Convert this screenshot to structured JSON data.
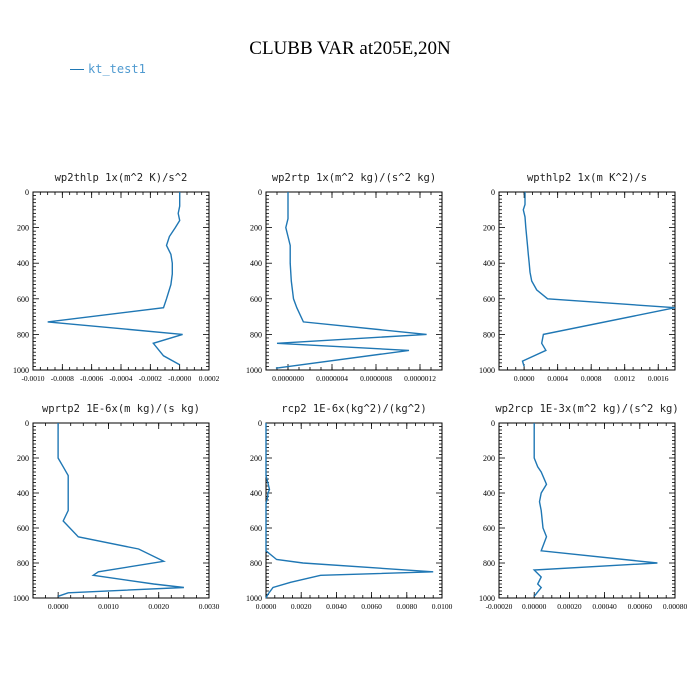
{
  "title": "CLUBB VAR at205E,20N",
  "legend": {
    "series_name": "kt_test1",
    "color": "#1f77b4"
  },
  "chart_data": [
    {
      "type": "line",
      "title": "wp2thlp  1x(m^2 K)/s^2",
      "xlim": [
        -0.001,
        0.0002
      ],
      "ylim": [
        1000,
        0
      ],
      "x_ticks": [
        "-0.0010",
        "-0.0008",
        "-0.0006",
        "-0.0004",
        "-0.0002",
        "-0.0000",
        "0.0002"
      ],
      "x_tick_values": [
        -0.001,
        -0.0008,
        -0.0006,
        -0.0004,
        -0.0002,
        0.0,
        0.0002
      ],
      "y_ticks": [
        "0",
        "200",
        "400",
        "600",
        "800",
        "1000"
      ],
      "series": [
        {
          "name": "kt_test1",
          "x": [
            0.0,
            0.0,
            -1e-05,
            0.0,
            -3e-05,
            -7e-05,
            -9e-05,
            -6e-05,
            -5e-05,
            -5e-05,
            -6e-05,
            -9e-05,
            -0.00011,
            -0.0009,
            2e-05,
            -0.00018,
            -0.00011,
            0.0
          ],
          "y": [
            0,
            80,
            120,
            160,
            200,
            250,
            300,
            350,
            400,
            460,
            520,
            600,
            650,
            730,
            800,
            850,
            920,
            970
          ]
        }
      ]
    },
    {
      "type": "line",
      "title": "wp2rtp  1x(m^2 kg)/(s^2 kg)",
      "xlim": [
        -2e-07,
        1.4e-06
      ],
      "ylim": [
        1000,
        0
      ],
      "x_ticks": [
        "0.0000000",
        "0.0000004",
        "0.0000008",
        "0.0000012"
      ],
      "x_tick_values": [
        0.0,
        4e-07,
        8e-07,
        1.2e-06
      ],
      "y_ticks": [
        "0",
        "200",
        "400",
        "600",
        "800",
        "1000"
      ],
      "series": [
        {
          "name": "kt_test1",
          "x": [
            0.0,
            0.0,
            0.0,
            -2e-08,
            0.0,
            2e-08,
            2e-08,
            3e-08,
            5e-08,
            8e-08,
            1.4e-07,
            1.26e-06,
            -1e-07,
            1.1e-06,
            -1.1e-07
          ],
          "y": [
            0,
            100,
            150,
            200,
            250,
            300,
            400,
            500,
            600,
            650,
            730,
            800,
            850,
            890,
            990
          ]
        }
      ]
    },
    {
      "type": "line",
      "title": "wpthlp2  1x(m K^2)/s",
      "xlim": [
        -0.0003,
        0.0018
      ],
      "ylim": [
        1000,
        0
      ],
      "x_ticks": [
        "0.0000",
        "0.0004",
        "0.0008",
        "0.0012",
        "0.0016"
      ],
      "x_tick_values": [
        0.0,
        0.0004,
        0.0008,
        0.0012,
        0.0016
      ],
      "y_ticks": [
        "0",
        "200",
        "400",
        "600",
        "800",
        "1000"
      ],
      "series": [
        {
          "name": "kt_test1",
          "x": [
            1e-05,
            1e-05,
            -1e-05,
            1e-05,
            2e-05,
            4e-05,
            5e-05,
            6e-05,
            7e-05,
            9e-05,
            0.00015,
            0.00028,
            0.0018,
            0.00023,
            0.00021,
            0.00026,
            -2e-05,
            0.0
          ],
          "y": [
            0,
            70,
            100,
            140,
            200,
            300,
            350,
            400,
            450,
            500,
            550,
            600,
            650,
            800,
            850,
            890,
            950,
            980
          ]
        }
      ]
    },
    {
      "type": "line",
      "title": "wprtp2  1E-6x(m kg)/(s kg)",
      "xlim": [
        -0.0005,
        0.003
      ],
      "ylim": [
        1000,
        0
      ],
      "x_ticks": [
        "0.0000",
        "0.0010",
        "0.0020",
        "0.0030"
      ],
      "x_tick_values": [
        0.0,
        0.001,
        0.002,
        0.003
      ],
      "y_ticks": [
        "0",
        "200",
        "400",
        "600",
        "800",
        "1000"
      ],
      "series": [
        {
          "name": "kt_test1",
          "x": [
            0.0,
            0.0,
            0.0,
            0.0001,
            0.0002,
            0.0002,
            0.0002,
            0.0001,
            0.0004,
            0.0016,
            0.0021,
            0.0008,
            0.0007,
            0.0019,
            0.0025,
            0.0002,
            0.0
          ],
          "y": [
            0,
            100,
            200,
            250,
            300,
            400,
            500,
            560,
            650,
            720,
            790,
            850,
            870,
            920,
            940,
            970,
            990
          ]
        }
      ]
    },
    {
      "type": "line",
      "title": "rcp2  1E-6x(kg^2)/(kg^2)",
      "xlim": [
        0.0,
        0.01
      ],
      "ylim": [
        1000,
        0
      ],
      "x_ticks": [
        "0.0000",
        "0.0020",
        "0.0040",
        "0.0060",
        "0.0080",
        "0.0100"
      ],
      "x_tick_values": [
        0.0,
        0.002,
        0.004,
        0.006,
        0.008,
        0.01
      ],
      "y_ticks": [
        "0",
        "200",
        "400",
        "600",
        "800",
        "1000"
      ],
      "series": [
        {
          "name": "kt_test1",
          "x": [
            0.0,
            0.0,
            0.0001,
            0.0002,
            0.0001,
            0.0001,
            0.0,
            0.0,
            0.0,
            0.0,
            0.0,
            0.0006,
            0.0021,
            0.0095,
            0.0031,
            0.0014,
            0.0004,
            0.0001,
            0.0
          ],
          "y": [
            0,
            300,
            340,
            380,
            400,
            420,
            460,
            500,
            600,
            680,
            730,
            780,
            800,
            850,
            870,
            910,
            940,
            980,
            1000
          ]
        }
      ]
    },
    {
      "type": "line",
      "title": "wp2rcp  1E-3x(m^2 kg)/(s^2 kg)",
      "xlim": [
        -0.0002,
        0.0008
      ],
      "ylim": [
        1000,
        0
      ],
      "x_ticks": [
        "-0.00020",
        "0.00000",
        "0.00020",
        "0.00040",
        "0.00060",
        "0.00080"
      ],
      "x_tick_values": [
        -0.0002,
        0.0,
        0.0002,
        0.0004,
        0.0006,
        0.0008
      ],
      "y_ticks": [
        "0",
        "200",
        "400",
        "600",
        "800",
        "1000"
      ],
      "series": [
        {
          "name": "kt_test1",
          "x": [
            0.0,
            0.0,
            0.0,
            2e-05,
            4e-05,
            7e-05,
            4e-05,
            3e-05,
            4e-05,
            5e-05,
            7e-05,
            4e-05,
            0.0007,
            0.0,
            4e-05,
            2e-05,
            4e-05,
            0.0
          ],
          "y": [
            0,
            100,
            200,
            250,
            280,
            350,
            400,
            450,
            500,
            600,
            650,
            730,
            800,
            840,
            880,
            920,
            940,
            990
          ]
        }
      ]
    }
  ]
}
